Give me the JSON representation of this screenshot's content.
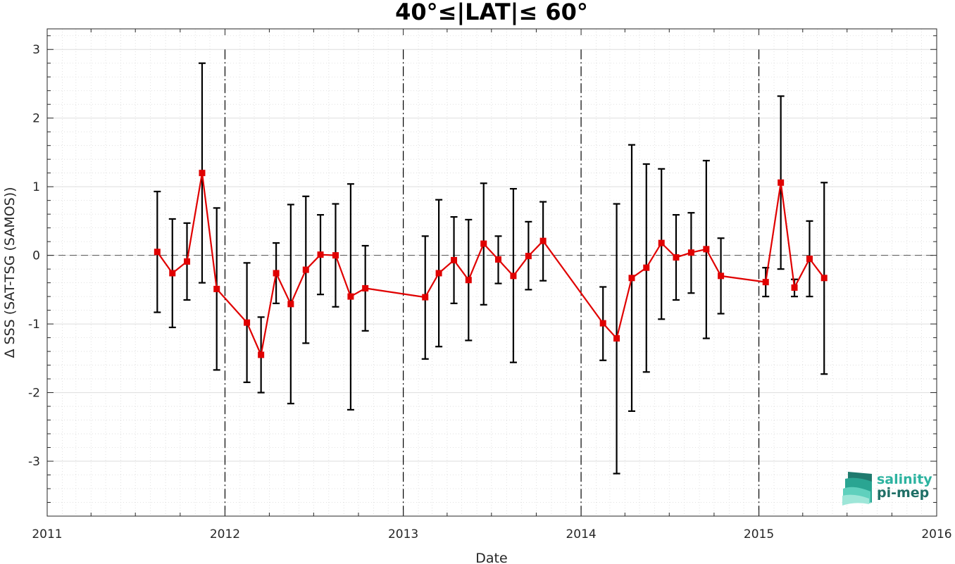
{
  "chart_data": {
    "type": "line",
    "title": "40°≤|LAT|≤ 60°",
    "xlabel": "Date",
    "ylabel": "Δ SSS (SAT-TSG (SAMOS))",
    "xlim": [
      "2011-01-01",
      "2016-01-01"
    ],
    "ylim": [
      -3.8,
      3.3
    ],
    "x_ticks": [
      "2011",
      "2012",
      "2013",
      "2014",
      "2015",
      "2016"
    ],
    "y_ticks": [
      3,
      2,
      1,
      0,
      -1,
      -2,
      -3
    ],
    "y_tick_labels": [
      "3",
      "2",
      "1",
      "0",
      "-1",
      "-2",
      "-3"
    ],
    "grid": true,
    "reference_line_y": 0,
    "year_separators": [
      "2012",
      "2013",
      "2014",
      "2015"
    ],
    "series_color": "#e00000",
    "errorbar_color": "#000000",
    "points": [
      {
        "x": "2011-08-15",
        "y": 0.05,
        "lo": -0.83,
        "hi": 0.93
      },
      {
        "x": "2011-09-15",
        "y": -0.26,
        "lo": -1.05,
        "hi": 0.53
      },
      {
        "x": "2011-10-15",
        "y": -0.09,
        "lo": -0.65,
        "hi": 0.47
      },
      {
        "x": "2011-11-15",
        "y": 1.2,
        "lo": -0.4,
        "hi": 2.8
      },
      {
        "x": "2011-12-15",
        "y": -0.49,
        "lo": -1.67,
        "hi": 0.69
      },
      {
        "x": "2012-02-15",
        "y": -0.98,
        "lo": -1.85,
        "hi": -0.11
      },
      {
        "x": "2012-03-15",
        "y": -1.45,
        "lo": -2.0,
        "hi": -0.9
      },
      {
        "x": "2012-04-15",
        "y": -0.26,
        "lo": -0.7,
        "hi": 0.18
      },
      {
        "x": "2012-05-15",
        "y": -0.71,
        "lo": -2.16,
        "hi": 0.74
      },
      {
        "x": "2012-06-15",
        "y": -0.21,
        "lo": -1.28,
        "hi": 0.86
      },
      {
        "x": "2012-07-15",
        "y": 0.01,
        "lo": -0.57,
        "hi": 0.59
      },
      {
        "x": "2012-08-15",
        "y": 0.0,
        "lo": -0.75,
        "hi": 0.75
      },
      {
        "x": "2012-09-15",
        "y": -0.6,
        "lo": -2.25,
        "hi": 1.04
      },
      {
        "x": "2012-10-15",
        "y": -0.48,
        "lo": -1.1,
        "hi": 0.14
      },
      {
        "x": "2013-02-15",
        "y": -0.61,
        "lo": -1.51,
        "hi": 0.28
      },
      {
        "x": "2013-03-15",
        "y": -0.26,
        "lo": -1.33,
        "hi": 0.81
      },
      {
        "x": "2013-04-15",
        "y": -0.07,
        "lo": -0.7,
        "hi": 0.56
      },
      {
        "x": "2013-05-15",
        "y": -0.36,
        "lo": -1.24,
        "hi": 0.52
      },
      {
        "x": "2013-06-15",
        "y": 0.17,
        "lo": -0.72,
        "hi": 1.05
      },
      {
        "x": "2013-07-15",
        "y": -0.06,
        "lo": -0.41,
        "hi": 0.28
      },
      {
        "x": "2013-08-15",
        "y": -0.3,
        "lo": -1.56,
        "hi": 0.97
      },
      {
        "x": "2013-09-15",
        "y": -0.01,
        "lo": -0.5,
        "hi": 0.49
      },
      {
        "x": "2013-10-15",
        "y": 0.21,
        "lo": -0.37,
        "hi": 0.78
      },
      {
        "x": "2014-02-15",
        "y": -0.99,
        "lo": -1.53,
        "hi": -0.46
      },
      {
        "x": "2014-03-15",
        "y": -1.21,
        "lo": -3.18,
        "hi": 0.75
      },
      {
        "x": "2014-04-15",
        "y": -0.33,
        "lo": -2.27,
        "hi": 1.61
      },
      {
        "x": "2014-05-15",
        "y": -0.18,
        "lo": -1.7,
        "hi": 1.33
      },
      {
        "x": "2014-06-15",
        "y": 0.18,
        "lo": -0.93,
        "hi": 1.26
      },
      {
        "x": "2014-07-15",
        "y": -0.03,
        "lo": -0.65,
        "hi": 0.59
      },
      {
        "x": "2014-08-15",
        "y": 0.04,
        "lo": -0.55,
        "hi": 0.62
      },
      {
        "x": "2014-09-15",
        "y": 0.09,
        "lo": -1.21,
        "hi": 1.38
      },
      {
        "x": "2014-10-15",
        "y": -0.3,
        "lo": -0.85,
        "hi": 0.25
      },
      {
        "x": "2015-01-15",
        "y": -0.39,
        "lo": -0.6,
        "hi": -0.18
      },
      {
        "x": "2015-02-15",
        "y": 1.06,
        "lo": -0.2,
        "hi": 2.32
      },
      {
        "x": "2015-03-15",
        "y": -0.47,
        "lo": -0.6,
        "hi": -0.35
      },
      {
        "x": "2015-04-15",
        "y": -0.05,
        "lo": -0.6,
        "hi": 0.5
      },
      {
        "x": "2015-05-15",
        "y": -0.33,
        "lo": -1.73,
        "hi": 1.06
      }
    ]
  },
  "logo": {
    "line1": "salinity",
    "line2": "pi-mep",
    "color1": "#2db3a0",
    "color2": "#1f6f66"
  }
}
